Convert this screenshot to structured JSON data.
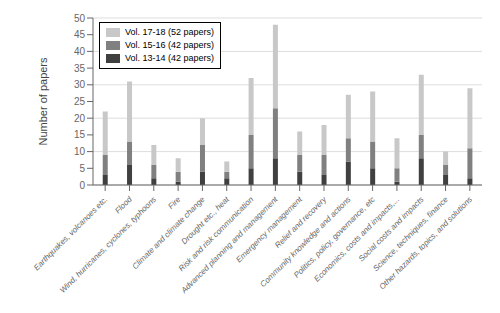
{
  "chart_data": {
    "type": "bar",
    "stacked": true,
    "categories": [
      "Earthquakes, volcanoes etc.",
      "Flood",
      "Wind, hurricanes, cyclones, typhoons",
      "Fire",
      "Climate and climate change",
      "Drought etc., heat",
      "Risk and risk communication",
      "Advanced planning and management",
      "Emergency management",
      "Relief and recovery",
      "Community knowledge and actions",
      "Politics, policy, governance, etc",
      "Economics, costs and impacts,...",
      "Social costs and impacts",
      "Science, techniques, finance",
      "Other hazards, topics, and solutions"
    ],
    "series": [
      {
        "name": "Vol. 13-14 (42 papers)",
        "color": "#404040",
        "values": [
          3,
          6,
          2,
          1,
          4,
          2,
          5,
          8,
          4,
          3,
          7,
          5,
          1,
          8,
          3,
          2
        ]
      },
      {
        "name": "Vol. 15-16 (42 papers)",
        "color": "#808080",
        "values": [
          6,
          7,
          4,
          3,
          8,
          2,
          10,
          15,
          5,
          6,
          7,
          8,
          4,
          7,
          3,
          9
        ]
      },
      {
        "name": "Vol. 17-18 (52 papers)",
        "color": "#c8c8c8",
        "values": [
          13,
          18,
          6,
          4,
          8,
          3,
          17,
          25,
          7,
          9,
          13,
          15,
          9,
          18,
          4,
          18
        ]
      }
    ],
    "ylabel": "Number of papers",
    "ylim": [
      0,
      50
    ],
    "yticks": [
      0,
      5,
      10,
      15,
      20,
      25,
      30,
      35,
      40,
      45,
      50
    ],
    "grid": true,
    "legend": "upper left"
  }
}
